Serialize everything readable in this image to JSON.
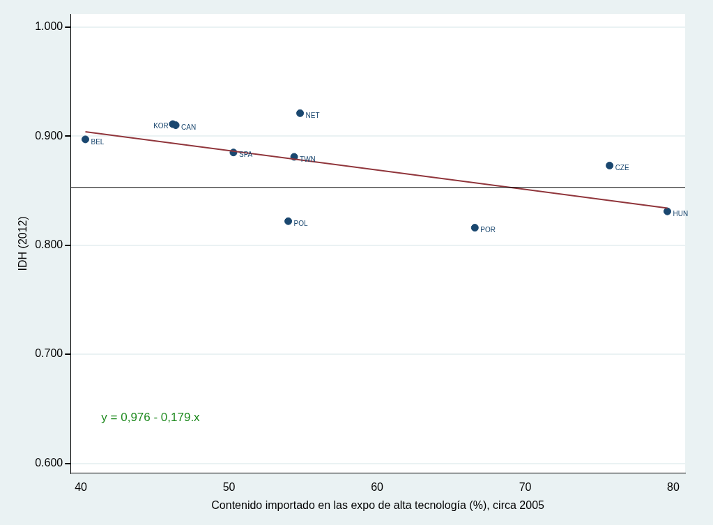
{
  "chart_data": {
    "type": "scatter",
    "xlabel": "Contenido importado en las expo de alta tecnología (%), circa 2005",
    "ylabel": "IDH (2012)",
    "xlim": [
      39.3,
      80.8
    ],
    "xticks": [
      40,
      50,
      60,
      70,
      80
    ],
    "ylim": [
      0.591,
      1.012
    ],
    "yticks": [
      {
        "value": 0.6,
        "label": "0.600"
      },
      {
        "value": 0.7,
        "label": "0.700"
      },
      {
        "value": 0.8,
        "label": "0.800"
      },
      {
        "value": 0.9,
        "label": "0.900"
      },
      {
        "value": 1.0,
        "label": "1.000"
      }
    ],
    "grid": "y",
    "legend": false,
    "series": [
      {
        "color": "#1a476f",
        "marker": "circle",
        "x": [
          40.3,
          46.2,
          46.4,
          54.8,
          50.3,
          54.4,
          75.7,
          79.6,
          54.0,
          66.6
        ],
        "values": [
          0.897,
          0.911,
          0.91,
          0.921,
          0.885,
          0.881,
          0.873,
          0.831,
          0.822,
          0.816
        ]
      },
      {
        "type": "line",
        "color": "#90353b",
        "marker": "none",
        "x": [
          40.3,
          79.6
        ],
        "values": [
          0.904,
          0.834
        ]
      }
    ],
    "ref_lines": [
      {
        "axis": "y",
        "value": 0.853,
        "color": "#000000"
      }
    ],
    "annotations": [
      {
        "text": "BEL",
        "x": 40.3,
        "y": 0.897
      },
      {
        "text": "KOR",
        "x": 46.2,
        "y": 0.911
      },
      {
        "text": "CAN",
        "x": 46.4,
        "y": 0.91
      },
      {
        "text": "NET",
        "x": 54.8,
        "y": 0.921
      },
      {
        "text": "SPA",
        "x": 50.3,
        "y": 0.885
      },
      {
        "text": "TWN",
        "x": 54.4,
        "y": 0.881
      },
      {
        "text": "CZE",
        "x": 75.7,
        "y": 0.873
      },
      {
        "text": "HUN",
        "x": 79.6,
        "y": 0.831
      },
      {
        "text": "POL",
        "x": 54.0,
        "y": 0.822
      },
      {
        "text": "POR",
        "x": 66.6,
        "y": 0.816
      },
      "y = 0,976 - 0,179.x"
    ]
  }
}
